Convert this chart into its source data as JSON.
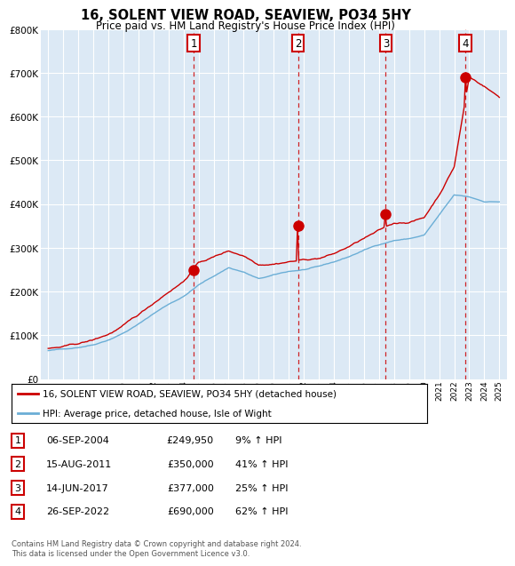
{
  "title": "16, SOLENT VIEW ROAD, SEAVIEW, PO34 5HY",
  "subtitle": "Price paid vs. HM Land Registry's House Price Index (HPI)",
  "background_color": "#dce9f5",
  "ylim": [
    0,
    800000
  ],
  "yticks": [
    0,
    100000,
    200000,
    300000,
    400000,
    500000,
    600000,
    700000,
    800000
  ],
  "sale_dates_float": [
    2004.674,
    2011.621,
    2017.452,
    2022.737
  ],
  "sale_prices": [
    249950,
    350000,
    377000,
    690000
  ],
  "sale_labels": [
    "1",
    "2",
    "3",
    "4"
  ],
  "legend_line1": "16, SOLENT VIEW ROAD, SEAVIEW, PO34 5HY (detached house)",
  "legend_line2": "HPI: Average price, detached house, Isle of Wight",
  "table_rows": [
    [
      "1",
      "06-SEP-2004",
      "£249,950",
      "9% ↑ HPI"
    ],
    [
      "2",
      "15-AUG-2011",
      "£350,000",
      "41% ↑ HPI"
    ],
    [
      "3",
      "14-JUN-2017",
      "£377,000",
      "25% ↑ HPI"
    ],
    [
      "4",
      "26-SEP-2022",
      "£690,000",
      "62% ↑ HPI"
    ]
  ],
  "footer": "Contains HM Land Registry data © Crown copyright and database right 2024.\nThis data is licensed under the Open Government Licence v3.0.",
  "red_line_color": "#cc0000",
  "blue_line_color": "#6baed6",
  "vline_color": "#cc0000",
  "marker_color": "#cc0000"
}
